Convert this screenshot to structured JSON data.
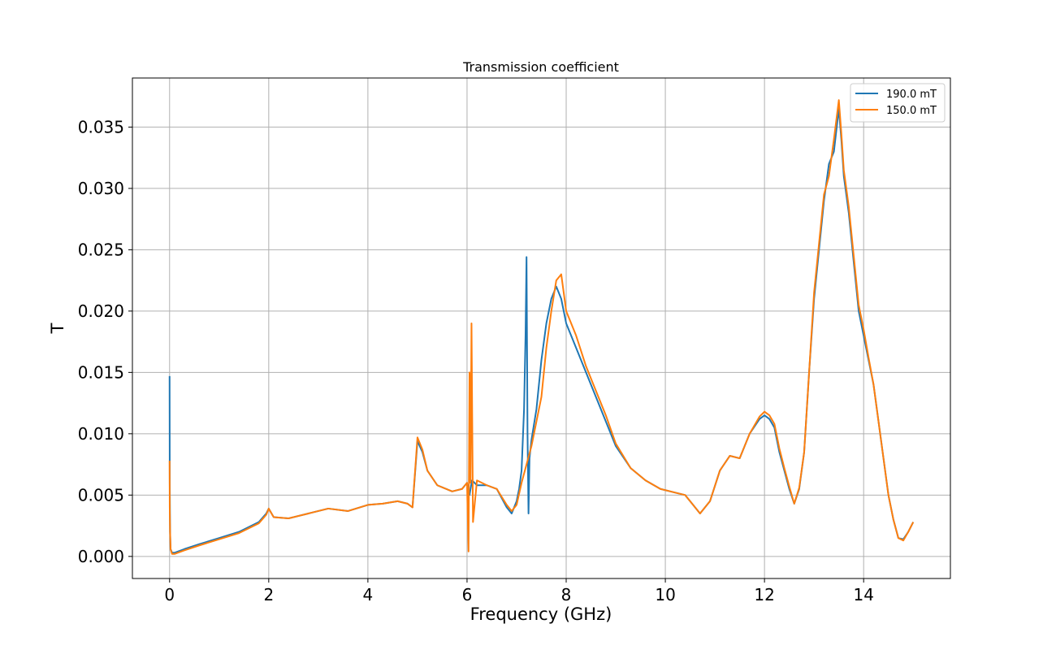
{
  "chart_data": {
    "type": "line",
    "title": "Transmission coefficient",
    "xlabel": "Frequency (GHz)",
    "ylabel": "T",
    "xlim": [
      -0.75,
      15.75
    ],
    "ylim": [
      -0.0018,
      0.039
    ],
    "xticks": [
      0,
      2,
      4,
      6,
      8,
      10,
      12,
      14
    ],
    "xtick_labels": [
      "0",
      "2",
      "4",
      "6",
      "8",
      "10",
      "12",
      "14"
    ],
    "yticks": [
      0.0,
      0.005,
      0.01,
      0.015,
      0.02,
      0.025,
      0.03,
      0.035
    ],
    "ytick_labels": [
      "0.000",
      "0.005",
      "0.010",
      "0.015",
      "0.020",
      "0.025",
      "0.030",
      "0.035"
    ],
    "grid": true,
    "legend_position": "top-right",
    "series": [
      {
        "name": "190.0 mT",
        "color": "#1f77b4",
        "x": [
          0.0,
          0.003,
          0.01,
          0.02,
          0.05,
          0.1,
          0.3,
          0.6,
          1.0,
          1.4,
          1.8,
          1.95,
          2.0,
          2.1,
          2.4,
          2.8,
          3.2,
          3.6,
          4.0,
          4.3,
          4.6,
          4.8,
          4.9,
          5.0,
          5.1,
          5.2,
          5.4,
          5.7,
          5.9,
          6.0,
          6.05,
          6.1,
          6.2,
          6.4,
          6.6,
          6.8,
          6.9,
          7.0,
          7.05,
          7.1,
          7.15,
          7.18,
          7.2,
          7.22,
          7.24,
          7.26,
          7.3,
          7.4,
          7.5,
          7.6,
          7.7,
          7.8,
          7.9,
          8.0,
          8.2,
          8.4,
          8.6,
          8.8,
          9.0,
          9.3,
          9.6,
          9.9,
          10.2,
          10.4,
          10.5,
          10.7,
          10.9,
          11.1,
          11.3,
          11.5,
          11.7,
          11.9,
          12.0,
          12.1,
          12.2,
          12.3,
          12.4,
          12.5,
          12.6,
          12.7,
          12.8,
          12.9,
          13.0,
          13.1,
          13.2,
          13.3,
          13.4,
          13.5,
          13.55,
          13.6,
          13.7,
          13.8,
          13.9,
          14.0,
          14.1,
          14.2,
          14.3,
          14.4,
          14.5,
          14.6,
          14.7,
          14.8,
          14.9,
          15.0
        ],
        "y": [
          0.0147,
          0.006,
          0.002,
          0.0006,
          0.0003,
          0.0003,
          0.0006,
          0.001,
          0.0015,
          0.002,
          0.0028,
          0.0035,
          0.0039,
          0.0032,
          0.0031,
          0.0035,
          0.0039,
          0.0037,
          0.0042,
          0.0043,
          0.0045,
          0.0043,
          0.004,
          0.0094,
          0.0085,
          0.007,
          0.0058,
          0.0053,
          0.0055,
          0.006,
          0.005,
          0.0062,
          0.0058,
          0.0058,
          0.0055,
          0.004,
          0.0035,
          0.0045,
          0.0055,
          0.007,
          0.012,
          0.018,
          0.0244,
          0.01,
          0.0035,
          0.008,
          0.0095,
          0.012,
          0.016,
          0.019,
          0.021,
          0.022,
          0.021,
          0.019,
          0.017,
          0.015,
          0.013,
          0.011,
          0.009,
          0.0072,
          0.0062,
          0.0055,
          0.0052,
          0.005,
          0.0045,
          0.0035,
          0.0045,
          0.007,
          0.0082,
          0.008,
          0.01,
          0.0112,
          0.0115,
          0.0112,
          0.0105,
          0.0085,
          0.007,
          0.0055,
          0.0043,
          0.0055,
          0.0085,
          0.015,
          0.021,
          0.025,
          0.029,
          0.032,
          0.033,
          0.0365,
          0.034,
          0.031,
          0.028,
          0.024,
          0.02,
          0.018,
          0.016,
          0.014,
          0.011,
          0.008,
          0.005,
          0.003,
          0.0015,
          0.0014,
          0.002,
          0.0028
        ]
      },
      {
        "name": "150.0 mT",
        "color": "#ff7f0e",
        "x": [
          0.0,
          0.003,
          0.01,
          0.02,
          0.05,
          0.1,
          0.3,
          0.6,
          1.0,
          1.4,
          1.8,
          1.95,
          2.0,
          2.1,
          2.4,
          2.8,
          3.2,
          3.6,
          4.0,
          4.3,
          4.6,
          4.8,
          4.9,
          5.0,
          5.1,
          5.2,
          5.4,
          5.7,
          5.9,
          6.0,
          6.03,
          6.05,
          6.07,
          6.09,
          6.12,
          6.2,
          6.4,
          6.6,
          6.8,
          6.9,
          7.0,
          7.1,
          7.2,
          7.3,
          7.4,
          7.5,
          7.6,
          7.7,
          7.8,
          7.9,
          8.0,
          8.2,
          8.4,
          8.6,
          8.8,
          9.0,
          9.3,
          9.6,
          9.9,
          10.2,
          10.4,
          10.5,
          10.7,
          10.9,
          11.1,
          11.3,
          11.5,
          11.7,
          11.9,
          12.0,
          12.1,
          12.2,
          12.3,
          12.4,
          12.5,
          12.6,
          12.7,
          12.8,
          12.9,
          13.0,
          13.1,
          13.2,
          13.3,
          13.4,
          13.5,
          13.55,
          13.6,
          13.7,
          13.8,
          13.9,
          14.0,
          14.1,
          14.2,
          14.3,
          14.4,
          14.5,
          14.6,
          14.7,
          14.8,
          14.9,
          15.0
        ],
        "y": [
          0.0078,
          0.004,
          0.002,
          0.0006,
          0.0002,
          0.0002,
          0.0005,
          0.0009,
          0.0014,
          0.0019,
          0.0027,
          0.0034,
          0.0039,
          0.0032,
          0.0031,
          0.0035,
          0.0039,
          0.0037,
          0.0042,
          0.0043,
          0.0045,
          0.0043,
          0.004,
          0.0097,
          0.0087,
          0.007,
          0.0058,
          0.0053,
          0.0055,
          0.006,
          0.0004,
          0.015,
          0.006,
          0.019,
          0.0028,
          0.0062,
          0.0058,
          0.0055,
          0.0042,
          0.0037,
          0.0042,
          0.006,
          0.0075,
          0.009,
          0.011,
          0.013,
          0.017,
          0.02,
          0.0225,
          0.023,
          0.02,
          0.018,
          0.0155,
          0.0135,
          0.0115,
          0.0092,
          0.0072,
          0.0062,
          0.0055,
          0.0052,
          0.005,
          0.0045,
          0.0035,
          0.0045,
          0.007,
          0.0082,
          0.008,
          0.01,
          0.0114,
          0.0118,
          0.0115,
          0.0108,
          0.0088,
          0.0072,
          0.0057,
          0.0043,
          0.0056,
          0.0085,
          0.015,
          0.0215,
          0.0255,
          0.0295,
          0.031,
          0.034,
          0.0372,
          0.0345,
          0.0315,
          0.0285,
          0.0245,
          0.0205,
          0.0185,
          0.0162,
          0.014,
          0.011,
          0.008,
          0.005,
          0.003,
          0.0015,
          0.0013,
          0.002,
          0.0028
        ]
      }
    ]
  }
}
